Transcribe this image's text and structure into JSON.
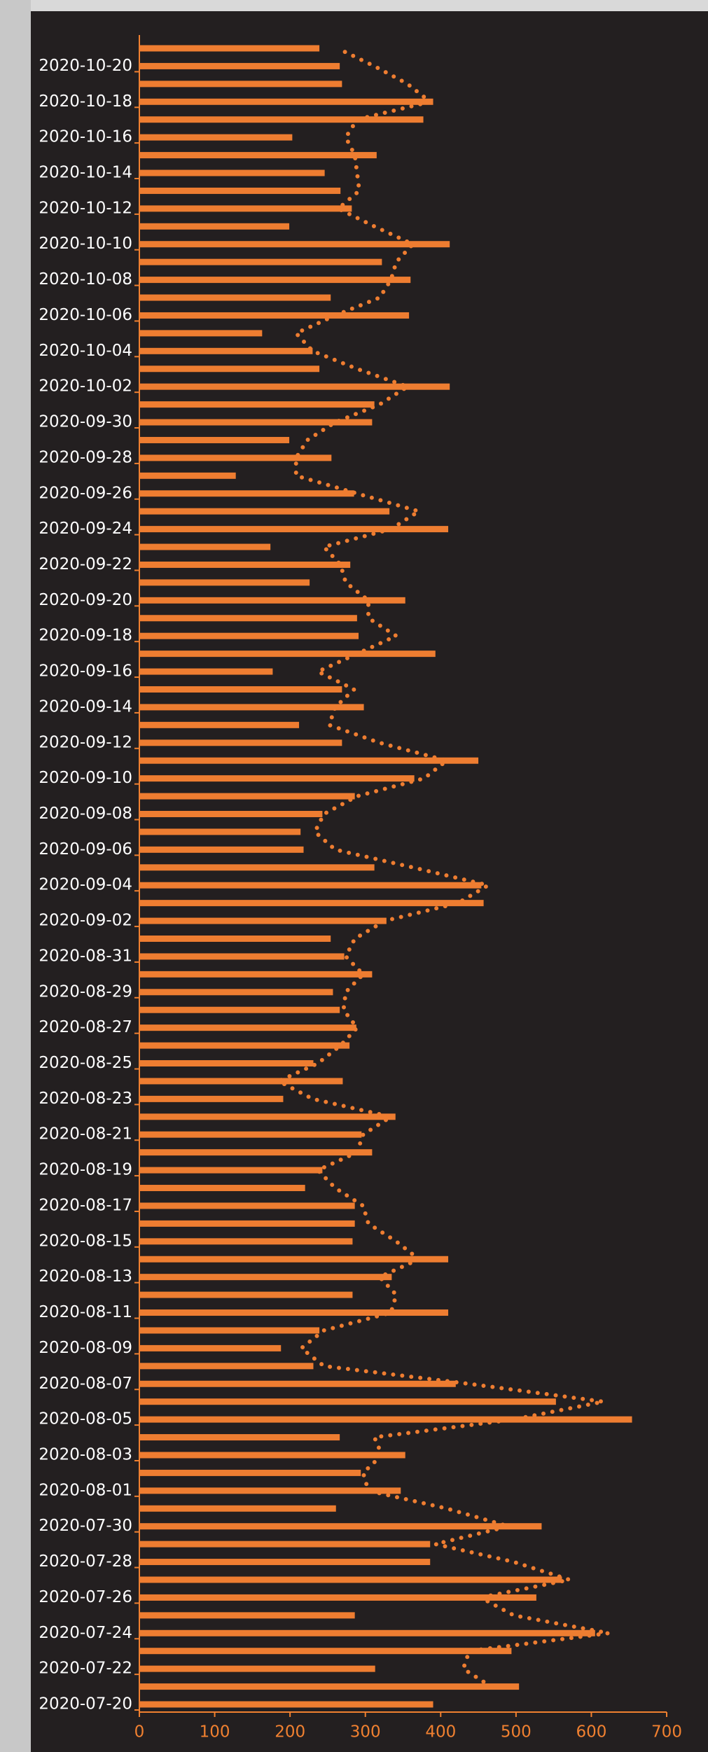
{
  "chart_data": {
    "type": "bar",
    "orientation": "horizontal",
    "categories": [
      "2020-07-20",
      null,
      "2020-07-22",
      null,
      "2020-07-24",
      null,
      "2020-07-26",
      null,
      "2020-07-28",
      null,
      "2020-07-30",
      null,
      "2020-08-01",
      null,
      "2020-08-03",
      null,
      "2020-08-05",
      null,
      "2020-08-07",
      null,
      "2020-08-09",
      null,
      "2020-08-11",
      null,
      "2020-08-13",
      null,
      "2020-08-15",
      null,
      "2020-08-17",
      null,
      "2020-08-19",
      null,
      "2020-08-21",
      null,
      "2020-08-23",
      null,
      "2020-08-25",
      null,
      "2020-08-27",
      null,
      "2020-08-29",
      null,
      "2020-08-31",
      null,
      "2020-09-02",
      null,
      "2020-09-04",
      null,
      "2020-09-06",
      null,
      "2020-09-08",
      null,
      "2020-09-10",
      null,
      "2020-09-12",
      null,
      "2020-09-14",
      null,
      "2020-09-16",
      null,
      "2020-09-18",
      null,
      "2020-09-20",
      null,
      "2020-09-22",
      null,
      "2020-09-24",
      null,
      "2020-09-26",
      null,
      "2020-09-28",
      null,
      "2020-09-30",
      null,
      "2020-10-02",
      null,
      "2020-10-04",
      null,
      "2020-10-06",
      null,
      "2020-10-08",
      null,
      "2020-10-10",
      null,
      "2020-10-12",
      null,
      "2020-10-14",
      null,
      "2020-10-16",
      null,
      "2020-10-18",
      null,
      "2020-10-20",
      null
    ],
    "series": [
      {
        "type": "bar",
        "color": "#ee7d31",
        "values": [
          390,
          504,
          313,
          494,
          605,
          286,
          527,
          561,
          386,
          386,
          534,
          261,
          347,
          294,
          353,
          266,
          654,
          553,
          420,
          231,
          188,
          239,
          410,
          283,
          335,
          410,
          283,
          286,
          286,
          220,
          243,
          309,
          295,
          340,
          191,
          270,
          231,
          279,
          288,
          266,
          257,
          309,
          272,
          254,
          328,
          457,
          454,
          312,
          218,
          214,
          243,
          286,
          365,
          450,
          269,
          212,
          298,
          269,
          177,
          393,
          291,
          289,
          353,
          226,
          280,
          174,
          410,
          332,
          285,
          128,
          255,
          199,
          309,
          312,
          412,
          239,
          230,
          163,
          358,
          254,
          360,
          322,
          412,
          199,
          282,
          267,
          246,
          315,
          203,
          377,
          390,
          269,
          266,
          239
        ]
      },
      {
        "type": "line",
        "style": "dotted",
        "color": "#ee7d31",
        "values": [
          null,
          467,
          430,
          438,
          623,
          497,
          453,
          571,
          497,
          393,
          490,
          408,
          304,
          297,
          322,
          312,
          497,
          616,
          438,
          245,
          215,
          245,
          334,
          341,
          319,
          371,
          341,
          304,
          297,
          260,
          237,
          289,
          297,
          334,
          230,
          185,
          237,
          267,
          289,
          271,
          274,
          297,
          274,
          286,
          326,
          423,
          463,
          363,
          260,
          233,
          245,
          289,
          378,
          408,
          319,
          252,
          260,
          285,
          237,
          289,
          341,
          304,
          304,
          274,
          267,
          245,
          334,
          371,
          289,
          208,
          208,
          223,
          260,
          319,
          356,
          289,
          230,
          208,
          260,
          319,
          334,
          341,
          363,
          312,
          264,
          292,
          289,
          286,
          274,
          289,
          386,
          356,
          312,
          263
        ]
      }
    ],
    "xlim": [
      0,
      700
    ],
    "xticks": [
      0,
      100,
      200,
      300,
      400,
      500,
      600,
      700
    ],
    "axis_color": "#f08030",
    "background": "#231f20"
  }
}
